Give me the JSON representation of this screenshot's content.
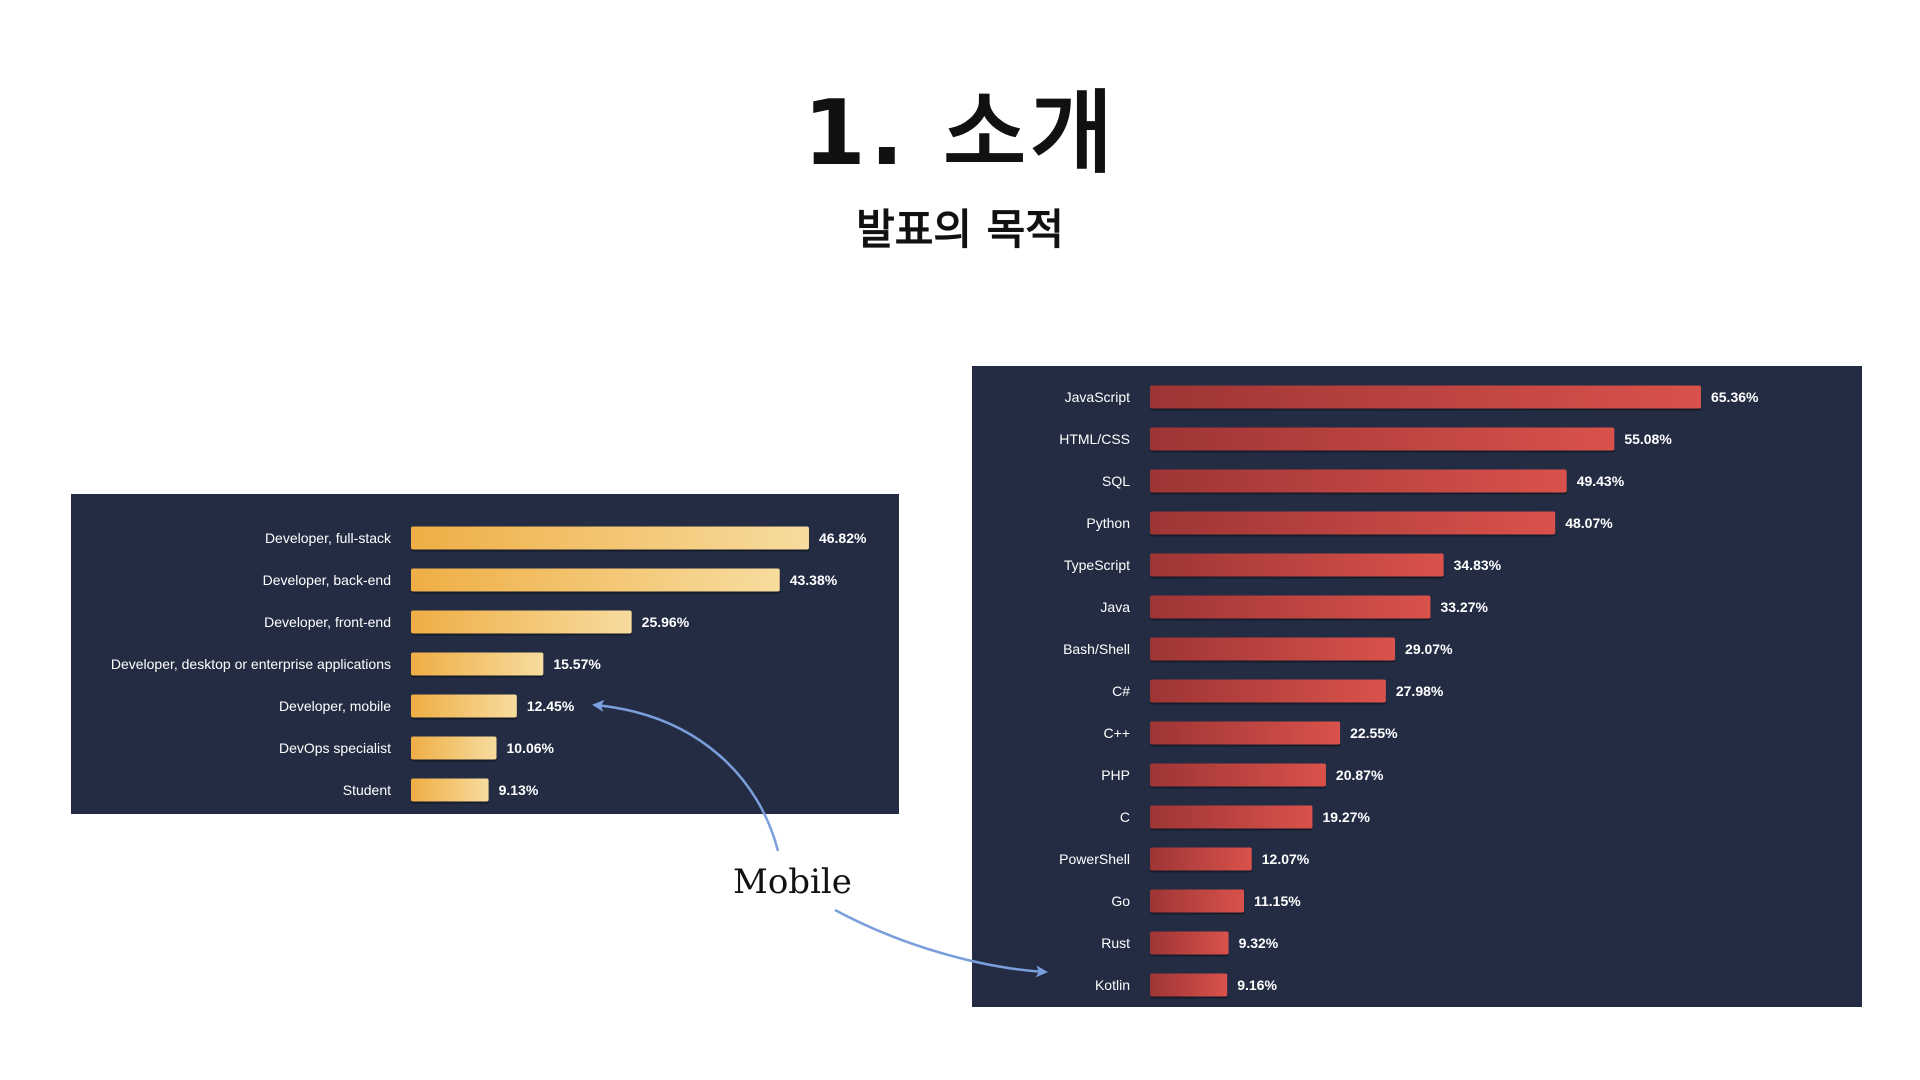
{
  "slide": {
    "title": "1.  소개",
    "subtitle": "발표의 목적",
    "annotation": "Mobile",
    "arrow_color": "#7b9fdc"
  },
  "chart_data": [
    {
      "type": "bar",
      "orientation": "horizontal",
      "categories": [
        "Developer, full-stack",
        "Developer, back-end",
        "Developer, front-end",
        "Developer, desktop or enterprise applications",
        "Developer, mobile",
        "DevOps specialist",
        "Student"
      ],
      "values": [
        46.82,
        43.38,
        25.96,
        15.57,
        12.45,
        10.06,
        9.13
      ],
      "value_labels": [
        "46.82%",
        "43.38%",
        "25.96%",
        "15.57%",
        "12.45%",
        "10.06%",
        "9.13%"
      ],
      "unit": "%",
      "bar_color_start": "#efae45",
      "bar_color_end": "#f7dc9e",
      "background": "#232c42"
    },
    {
      "type": "bar",
      "orientation": "horizontal",
      "categories": [
        "JavaScript",
        "HTML/CSS",
        "SQL",
        "Python",
        "TypeScript",
        "Java",
        "Bash/Shell",
        "C#",
        "C++",
        "PHP",
        "C",
        "PowerShell",
        "Go",
        "Rust",
        "Kotlin"
      ],
      "values": [
        65.36,
        55.08,
        49.43,
        48.07,
        34.83,
        33.27,
        29.07,
        27.98,
        22.55,
        20.87,
        19.27,
        12.07,
        11.15,
        9.32,
        9.16
      ],
      "value_labels": [
        "65.36%",
        "55.08%",
        "49.43%",
        "48.07%",
        "34.83%",
        "33.27%",
        "29.07%",
        "27.98%",
        "22.55%",
        "20.87%",
        "19.27%",
        "12.07%",
        "11.15%",
        "9.32%",
        "9.16%"
      ],
      "unit": "%",
      "bar_color_start": "#9e3535",
      "bar_color_end": "#d9524b",
      "background": "#232c42"
    }
  ]
}
